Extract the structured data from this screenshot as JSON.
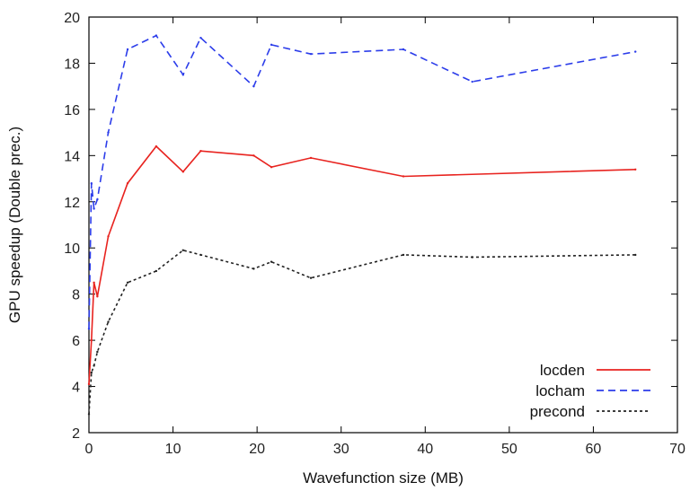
{
  "chart_data": {
    "type": "line",
    "title": "",
    "xlabel": "Wavefunction size (MB)",
    "ylabel": "GPU speedup (Double prec.)",
    "xlim": [
      0,
      70
    ],
    "ylim": [
      2,
      20
    ],
    "xticks": [
      "0",
      "10",
      "20",
      "30",
      "40",
      "50",
      "60",
      "70"
    ],
    "yticks": [
      "2",
      "4",
      "6",
      "8",
      "10",
      "12",
      "14",
      "16",
      "18",
      "20"
    ],
    "grid": false,
    "legend_position": "bottom-right",
    "series": [
      {
        "name": "locden",
        "color": "#e8231f",
        "dash": "solid",
        "x": [
          0,
          0.3,
          0.6,
          1.0,
          2.3,
          4.6,
          8.0,
          11.2,
          13.3,
          19.6,
          21.7,
          26.4,
          37.4,
          65.0
        ],
        "y": [
          4.1,
          6.0,
          8.5,
          7.9,
          10.5,
          12.8,
          14.4,
          13.3,
          14.2,
          14.0,
          13.5,
          13.9,
          13.1,
          13.4
        ]
      },
      {
        "name": "locham",
        "color": "#2c3dea",
        "dash": "dashed",
        "x": [
          0,
          0.3,
          0.6,
          1.0,
          2.3,
          4.6,
          8.0,
          11.2,
          13.3,
          19.6,
          21.7,
          26.4,
          37.4,
          45.6,
          65.0
        ],
        "y": [
          6.5,
          12.8,
          11.7,
          12.1,
          15.0,
          18.6,
          19.2,
          17.5,
          19.1,
          17.0,
          18.8,
          18.4,
          18.6,
          17.2,
          18.5
        ]
      },
      {
        "name": "precond",
        "color": "#222222",
        "dash": "dotted",
        "x": [
          0,
          0.3,
          0.6,
          1.0,
          2.3,
          4.6,
          8.0,
          11.2,
          13.3,
          19.6,
          21.7,
          26.4,
          37.4,
          45.6,
          65.0
        ],
        "y": [
          2.8,
          4.6,
          4.9,
          5.5,
          6.8,
          8.5,
          9.0,
          9.9,
          9.7,
          9.1,
          9.4,
          8.7,
          9.7,
          9.6,
          9.7
        ]
      }
    ]
  }
}
